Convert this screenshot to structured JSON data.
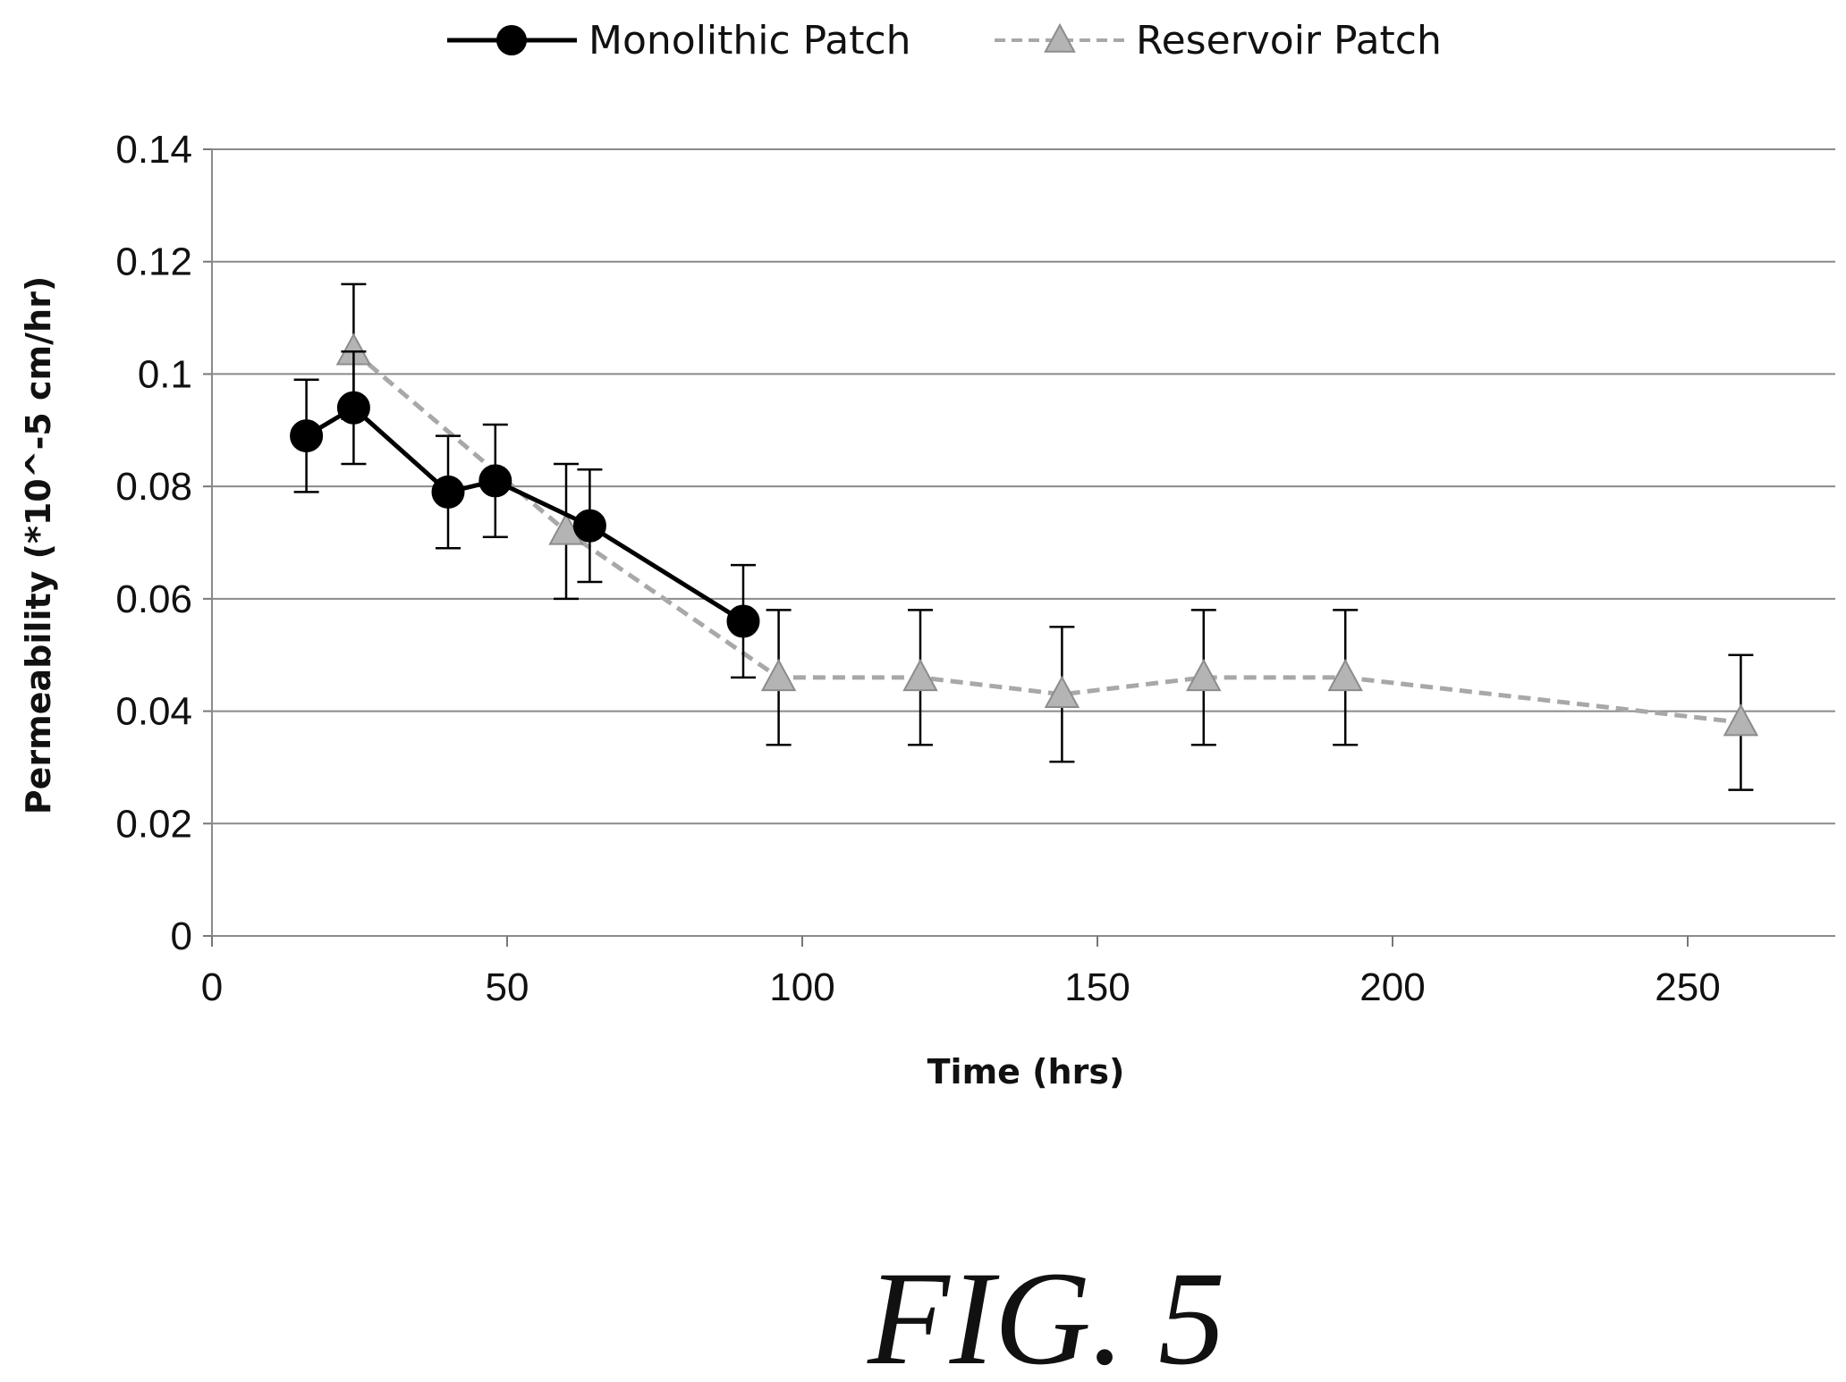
{
  "caption": "FIG. 5",
  "chart_data": {
    "type": "line",
    "xlabel": "Time (hrs)",
    "ylabel": "Permeability (*10^-5 cm/hr)",
    "xlim": [
      0,
      275
    ],
    "ylim": [
      0,
      0.14
    ],
    "x_ticks": [
      "0",
      "50",
      "100",
      "150",
      "200",
      "250"
    ],
    "y_ticks": [
      "0",
      "0.02",
      "0.04",
      "0.06",
      "0.08",
      "0.1",
      "0.12",
      "0.14"
    ],
    "grid": "horizontal",
    "legend_position": "top",
    "series": [
      {
        "name": "Monolithic Patch",
        "marker": "circle",
        "line_style": "solid",
        "color": "#000000",
        "x": [
          16,
          24,
          40,
          48,
          64,
          90
        ],
        "y": [
          0.089,
          0.094,
          0.079,
          0.081,
          0.073,
          0.056
        ],
        "error": [
          0.01,
          0.01,
          0.01,
          0.01,
          0.01,
          0.01
        ]
      },
      {
        "name": "Reservoir Patch",
        "marker": "triangle",
        "line_style": "dashed",
        "color": "#aaaaaa",
        "x": [
          24,
          60,
          96,
          120,
          144,
          168,
          192,
          259
        ],
        "y": [
          0.104,
          0.072,
          0.046,
          0.046,
          0.043,
          0.046,
          0.046,
          0.038
        ],
        "error": [
          0.012,
          0.012,
          0.012,
          0.012,
          0.012,
          0.012,
          0.012,
          0.012
        ]
      }
    ]
  }
}
